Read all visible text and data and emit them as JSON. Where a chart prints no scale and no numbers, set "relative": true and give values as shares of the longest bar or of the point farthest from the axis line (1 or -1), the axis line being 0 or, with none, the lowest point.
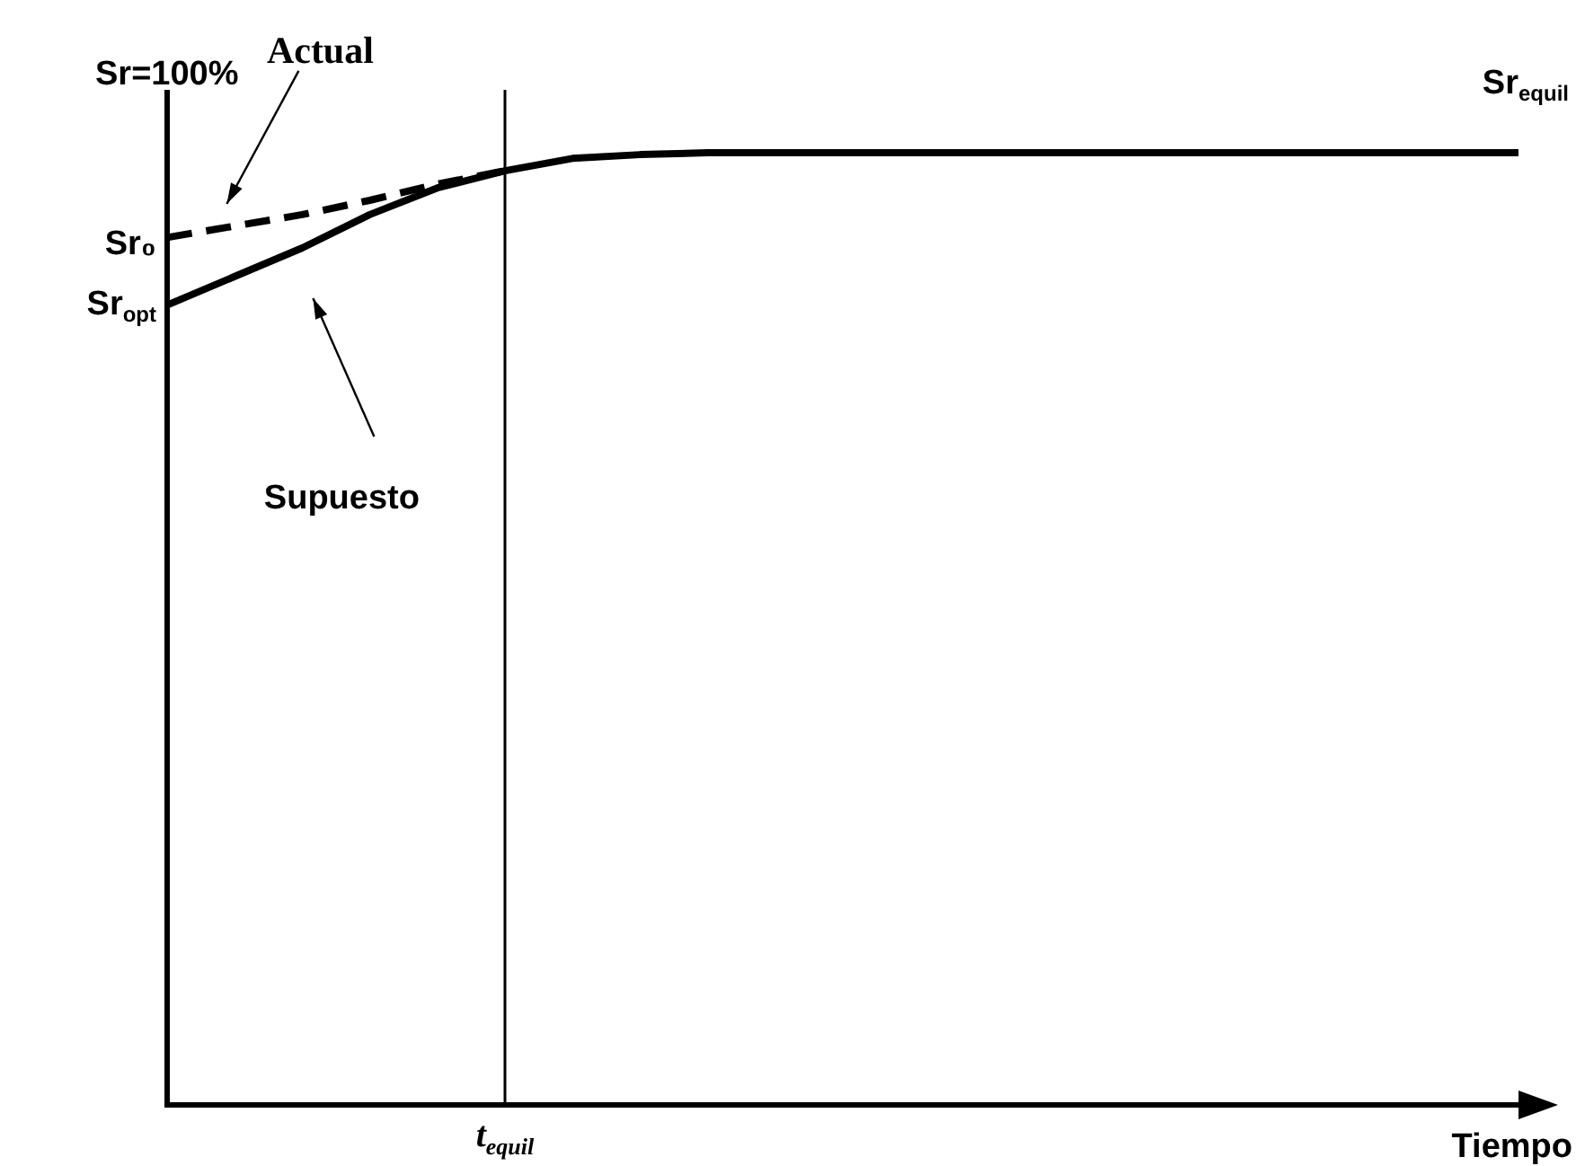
{
  "chart_data": {
    "type": "line",
    "relative": true,
    "xlabel": "Tiempo",
    "categories": [
      null,
      null,
      null,
      null,
      null,
      null,
      null,
      null,
      null,
      null,
      null,
      null,
      null,
      null,
      null,
      null,
      null,
      null,
      null,
      null,
      null
    ],
    "series": [
      {
        "name": "Actual",
        "color": "#000000",
        "line_style": "dashed",
        "values": [
          0.911,
          0.923,
          0.935,
          0.95,
          0.967,
          0.981,
          null,
          null,
          null,
          null,
          null,
          null,
          null,
          null,
          null,
          null,
          null,
          null,
          null,
          null,
          null
        ]
      },
      {
        "name": "Supuesto",
        "color": "#000000",
        "line_style": "solid",
        "values": [
          0.84,
          0.87,
          0.9,
          0.935,
          0.963,
          0.981,
          0.994,
          0.998,
          1,
          1,
          1,
          1,
          1,
          1,
          1,
          1,
          1,
          1,
          1,
          1,
          1
        ]
      }
    ],
    "annotations": [
      "Sr=100%",
      "Sr₀",
      "Sr$_{opt}$",
      "Sr$_{equil}$",
      "t$_{equil}$"
    ],
    "legend": false,
    "grid": false,
    "marker": "none"
  }
}
